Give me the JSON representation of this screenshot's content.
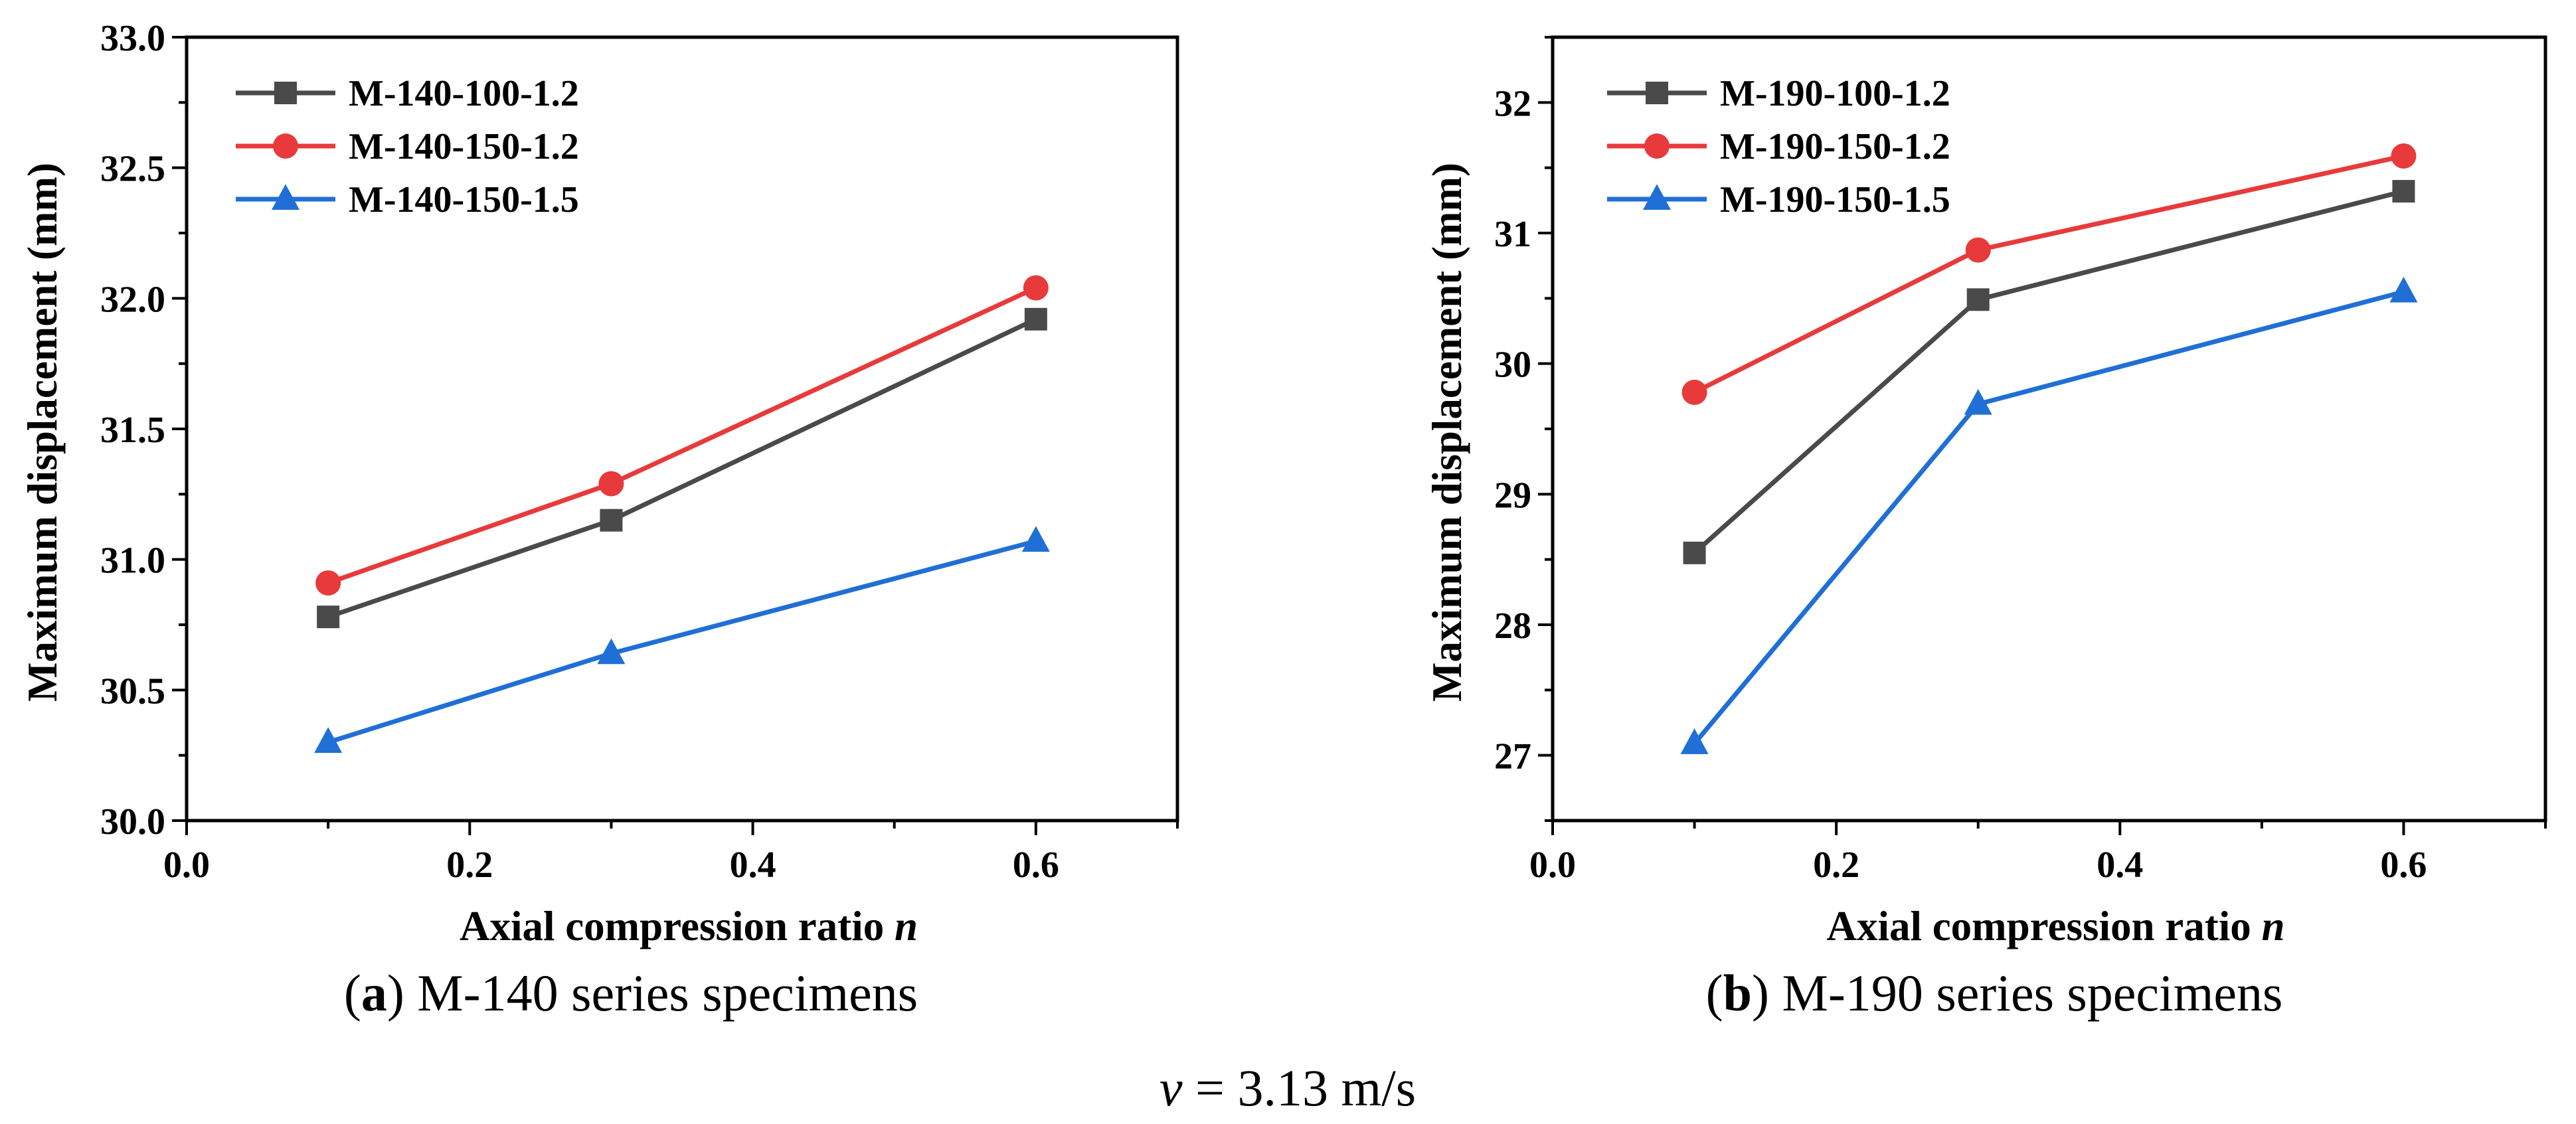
{
  "chart_data": [
    {
      "id": "a",
      "type": "line",
      "caption_letter": "a",
      "caption_text": "M-140 series specimens",
      "xlabel": "Axial compression ratio",
      "xlabel_var": "n",
      "ylabel": "Maximum displacement (mm)",
      "xlim": [
        0.0,
        0.7
      ],
      "ylim": [
        30.0,
        33.0
      ],
      "xticks": [
        0.0,
        0.2,
        0.4,
        0.6
      ],
      "xtick_labels": [
        "0.0",
        "0.2",
        "0.4",
        "0.6"
      ],
      "yticks": [
        30.0,
        30.5,
        31.0,
        31.5,
        32.0,
        32.5,
        33.0
      ],
      "ytick_labels": [
        "30.0",
        "30.5",
        "31.0",
        "31.5",
        "32.0",
        "32.5",
        "33.0"
      ],
      "legend_position": "top-left",
      "x": [
        0.1,
        0.3,
        0.6
      ],
      "series": [
        {
          "name": "M-140-100-1.2",
          "marker": "square",
          "color": "#4a4a4a",
          "values": [
            30.78,
            31.15,
            31.92
          ]
        },
        {
          "name": "M-140-150-1.2",
          "marker": "circle",
          "color": "#e83a3a",
          "values": [
            30.91,
            31.29,
            32.04
          ]
        },
        {
          "name": "M-140-150-1.5",
          "marker": "triangle",
          "color": "#1f6fd6",
          "values": [
            30.3,
            30.64,
            31.07
          ]
        }
      ]
    },
    {
      "id": "b",
      "type": "line",
      "caption_letter": "b",
      "caption_text": "M-190 series specimens",
      "xlabel": "Axial compression ratio",
      "xlabel_var": "n",
      "ylabel": "Maximum displacement (mm)",
      "xlim": [
        0.0,
        0.7
      ],
      "ylim": [
        26.5,
        32.5
      ],
      "xticks": [
        0.0,
        0.2,
        0.4,
        0.6
      ],
      "xtick_labels": [
        "0.0",
        "0.2",
        "0.4",
        "0.6"
      ],
      "yticks": [
        27,
        28,
        29,
        30,
        31,
        32
      ],
      "ytick_labels": [
        "27",
        "28",
        "29",
        "30",
        "31",
        "32"
      ],
      "legend_position": "top-left",
      "x": [
        0.1,
        0.3,
        0.6
      ],
      "series": [
        {
          "name": "M-190-100-1.2",
          "marker": "square",
          "color": "#4a4a4a",
          "values": [
            28.55,
            30.49,
            31.32
          ]
        },
        {
          "name": "M-190-150-1.2",
          "marker": "circle",
          "color": "#e83a3a",
          "values": [
            29.78,
            30.87,
            31.59
          ]
        },
        {
          "name": "M-190-150-1.5",
          "marker": "triangle",
          "color": "#1f6fd6",
          "values": [
            27.09,
            29.69,
            30.55
          ]
        }
      ]
    }
  ],
  "footer": {
    "var": "v",
    "text": " = 3.13 m/s"
  }
}
